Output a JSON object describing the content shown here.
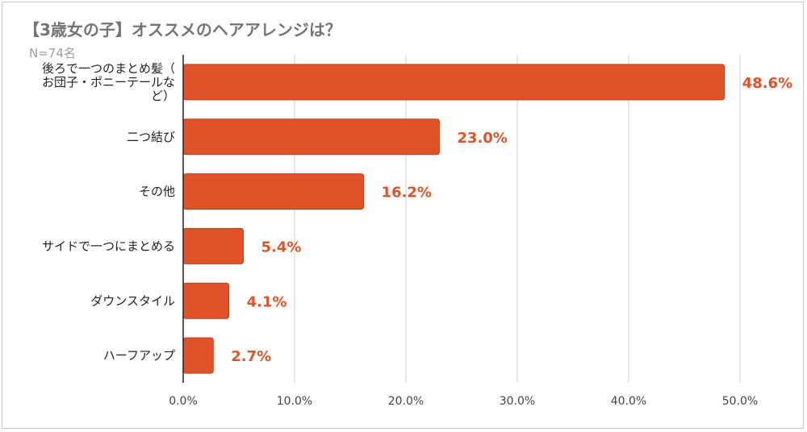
{
  "chart_data": {
    "type": "bar",
    "orientation": "horizontal",
    "title": "【3歳女の子】オススメのヘアアレンジは？",
    "subtitle": "N=74名",
    "categories": [
      [
        "後ろで一つのまとめ髪（",
        "お団子・ポニーテールな",
        "ど）"
      ],
      [
        "二つ結び"
      ],
      [
        "その他"
      ],
      [
        "サイドで一つにまとめる"
      ],
      [
        "ダウンスタイル"
      ],
      [
        "ハーフアップ"
      ]
    ],
    "values": [
      48.6,
      23.0,
      16.2,
      5.4,
      4.1,
      2.7
    ],
    "data_labels": [
      "48.6%",
      "23.0%",
      "16.2%",
      "5.4%",
      "4.1%",
      "2.7%"
    ],
    "xlim": [
      0,
      50
    ],
    "x_ticks": [
      0,
      10,
      20,
      30,
      40,
      50
    ],
    "x_tick_labels": [
      "0.0%",
      "10.0%",
      "20.0%",
      "30.0%",
      "40.0%",
      "50.0%"
    ],
    "xlabel": "",
    "ylabel": "",
    "grid": "vertical",
    "legend": "none",
    "colors": {
      "bar": "#e05329",
      "bar_edge": "#b8401c",
      "label": "#e05329",
      "grid": "#d0d0d0",
      "axis": "#222222"
    }
  }
}
